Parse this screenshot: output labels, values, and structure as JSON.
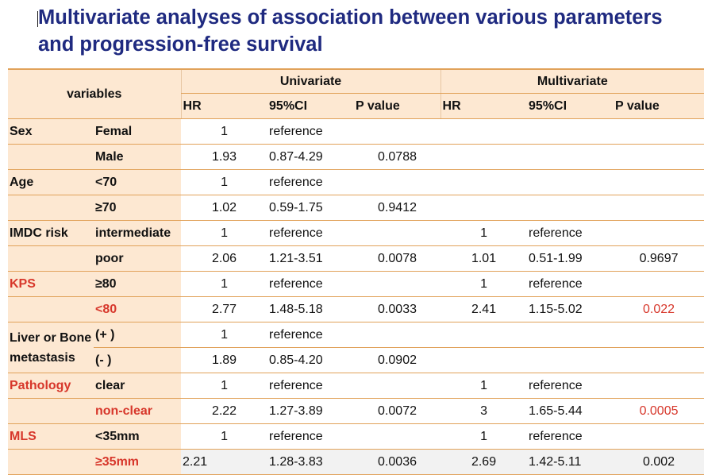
{
  "title": {
    "line1": "Multivariate analyses of association between various parameters",
    "line2": "and progression-free survival"
  },
  "table": {
    "variables_label": "variables",
    "univariate_label": "Univariate",
    "multivariate_label": "Multivariate",
    "subheaders": [
      "HR",
      "95%CI",
      "P value",
      "HR",
      "95%CI",
      "P value"
    ],
    "rows": [
      {
        "group": "Sex",
        "level": "Femal",
        "u_hr": "1",
        "u_ci": "reference",
        "u_p": "",
        "m_hr": "",
        "m_ci": "",
        "m_p": ""
      },
      {
        "group": "",
        "level": "Male",
        "u_hr": "1.93",
        "u_ci": "0.87-4.29",
        "u_p": "0.0788",
        "m_hr": "",
        "m_ci": "",
        "m_p": ""
      },
      {
        "group": "Age",
        "level": "<70",
        "u_hr": "1",
        "u_ci": "reference",
        "u_p": "",
        "m_hr": "",
        "m_ci": "",
        "m_p": ""
      },
      {
        "group": "",
        "level": "≥70",
        "u_hr": "1.02",
        "u_ci": "0.59-1.75",
        "u_p": "0.9412",
        "m_hr": "",
        "m_ci": "",
        "m_p": ""
      },
      {
        "group": "IMDC risk",
        "level": "intermediate",
        "u_hr": "1",
        "u_ci": "reference",
        "u_p": "",
        "m_hr": "1",
        "m_ci": "reference",
        "m_p": ""
      },
      {
        "group": "",
        "level": "poor",
        "u_hr": "2.06",
        "u_ci": "1.21-3.51",
        "u_p": "0.0078",
        "m_hr": "1.01",
        "m_ci": "0.51-1.99",
        "m_p": "0.9697"
      },
      {
        "group": "KPS",
        "level": "≥80",
        "u_hr": "1",
        "u_ci": "reference",
        "u_p": "",
        "m_hr": "1",
        "m_ci": "reference",
        "m_p": ""
      },
      {
        "group": "",
        "level": "<80",
        "u_hr": "2.77",
        "u_ci": "1.48-5.18",
        "u_p": "0.0033",
        "m_hr": "2.41",
        "m_ci": "1.15-5.02",
        "m_p": "0.022"
      },
      {
        "group": "Liver or Bone metastasis",
        "level": "(+ )",
        "u_hr": "1",
        "u_ci": "reference",
        "u_p": "",
        "m_hr": "",
        "m_ci": "",
        "m_p": ""
      },
      {
        "group": "",
        "level": "(- )",
        "u_hr": "1.89",
        "u_ci": "0.85-4.20",
        "u_p": "0.0902",
        "m_hr": "",
        "m_ci": "",
        "m_p": ""
      },
      {
        "group": "Pathology",
        "level": "clear",
        "u_hr": "1",
        "u_ci": "reference",
        "u_p": "",
        "m_hr": "1",
        "m_ci": "reference",
        "m_p": ""
      },
      {
        "group": "",
        "level": "non-clear",
        "u_hr": "2.22",
        "u_ci": "1.27-3.89",
        "u_p": "0.0072",
        "m_hr": "3",
        "m_ci": "1.65-5.44",
        "m_p": "0.0005"
      },
      {
        "group": "MLS",
        "level": "<35mm",
        "u_hr": "1",
        "u_ci": "reference",
        "u_p": "",
        "m_hr": "1",
        "m_ci": "reference",
        "m_p": ""
      },
      {
        "group": "",
        "level": "≥35mm",
        "u_hr": "2.21",
        "u_ci": "1.28-3.83",
        "u_p": "0.0036",
        "m_hr": "2.69",
        "m_ci": "1.42-5.11",
        "m_p": "0.002"
      }
    ]
  },
  "colors": {
    "title": "#1f2a80",
    "header_fill": "#fde8d2",
    "rule": "#e1a25a",
    "highlight_red": "#d7372b"
  }
}
